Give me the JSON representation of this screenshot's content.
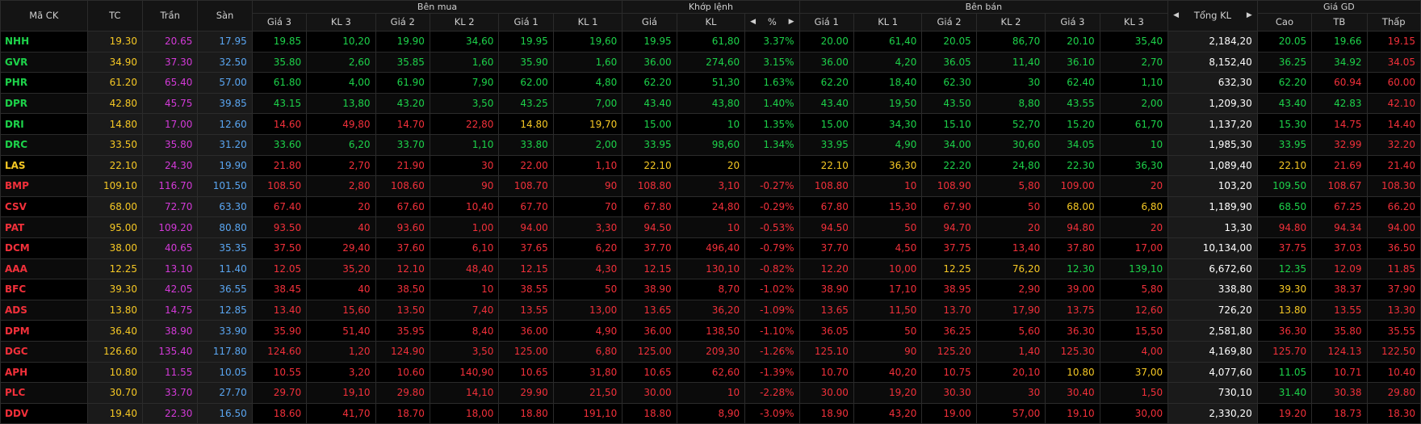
{
  "headers": {
    "symbol": "Mã CK",
    "ref": "TC",
    "ceil": "Trần",
    "floor": "Sàn",
    "buy_group": "Bên mua",
    "match_group": "Khớp lệnh",
    "sell_group": "Bên bán",
    "total": "Tổng KL",
    "price_group": "Giá GD",
    "buy_cols": [
      "Giá 3",
      "KL 3",
      "Giá 2",
      "KL 2",
      "Giá 1",
      "KL 1"
    ],
    "match_cols": [
      "Giá",
      "KL",
      "%"
    ],
    "sell_cols": [
      "Giá 1",
      "KL 1",
      "Giá 2",
      "KL 2",
      "Giá 3",
      "KL 3"
    ],
    "price_cols": [
      "Cao",
      "TB",
      "Thấp"
    ]
  },
  "colors": {
    "up": "#1dd24a",
    "down": "#f2303a",
    "ref": "#f6c824",
    "ceil": "#d33ad8",
    "floor": "#5aa6f2"
  },
  "rows": [
    {
      "sym": "NHH",
      "tc": "19.30",
      "ceil": "20.65",
      "floor": "17.95",
      "b3": [
        "19.85",
        "10,20",
        "up"
      ],
      "b2": [
        "19.90",
        "34,60",
        "up"
      ],
      "b1": [
        "19.95",
        "19,60",
        "up"
      ],
      "m": [
        "19.95",
        "61,80",
        "3.37%",
        "up"
      ],
      "s1": [
        "20.00",
        "61,40",
        "up"
      ],
      "s2": [
        "20.05",
        "86,70",
        "up"
      ],
      "s3": [
        "20.10",
        "35,40",
        "up"
      ],
      "tot": "2,184,20",
      "hi": [
        "20.05",
        "up"
      ],
      "avg": [
        "19.66",
        "up"
      ],
      "lo": [
        "19.15",
        "dn"
      ],
      "c": "up"
    },
    {
      "sym": "GVR",
      "tc": "34.90",
      "ceil": "37.30",
      "floor": "32.50",
      "b3": [
        "35.80",
        "2,60",
        "up"
      ],
      "b2": [
        "35.85",
        "1,60",
        "up"
      ],
      "b1": [
        "35.90",
        "1,60",
        "up"
      ],
      "m": [
        "36.00",
        "274,60",
        "3.15%",
        "up"
      ],
      "s1": [
        "36.00",
        "4,20",
        "up"
      ],
      "s2": [
        "36.05",
        "11,40",
        "up"
      ],
      "s3": [
        "36.10",
        "2,70",
        "up"
      ],
      "tot": "8,152,40",
      "hi": [
        "36.25",
        "up"
      ],
      "avg": [
        "34.92",
        "up"
      ],
      "lo": [
        "34.05",
        "dn"
      ],
      "c": "up"
    },
    {
      "sym": "PHR",
      "tc": "61.20",
      "ceil": "65.40",
      "floor": "57.00",
      "b3": [
        "61.80",
        "4,00",
        "up"
      ],
      "b2": [
        "61.90",
        "7,90",
        "up"
      ],
      "b1": [
        "62.00",
        "4,80",
        "up"
      ],
      "m": [
        "62.20",
        "51,30",
        "1.63%",
        "up"
      ],
      "s1": [
        "62.20",
        "18,40",
        "up"
      ],
      "s2": [
        "62.30",
        "30",
        "up"
      ],
      "s3": [
        "62.40",
        "1,10",
        "up"
      ],
      "tot": "632,30",
      "hi": [
        "62.20",
        "up"
      ],
      "avg": [
        "60.94",
        "dn"
      ],
      "lo": [
        "60.00",
        "dn"
      ],
      "c": "up"
    },
    {
      "sym": "DPR",
      "tc": "42.80",
      "ceil": "45.75",
      "floor": "39.85",
      "b3": [
        "43.15",
        "13,80",
        "up"
      ],
      "b2": [
        "43.20",
        "3,50",
        "up"
      ],
      "b1": [
        "43.25",
        "7,00",
        "up"
      ],
      "m": [
        "43.40",
        "43,80",
        "1.40%",
        "up"
      ],
      "s1": [
        "43.40",
        "19,50",
        "up"
      ],
      "s2": [
        "43.50",
        "8,80",
        "up"
      ],
      "s3": [
        "43.55",
        "2,00",
        "up"
      ],
      "tot": "1,209,30",
      "hi": [
        "43.40",
        "up"
      ],
      "avg": [
        "42.83",
        "up"
      ],
      "lo": [
        "42.10",
        "dn"
      ],
      "c": "up"
    },
    {
      "sym": "DRI",
      "tc": "14.80",
      "ceil": "17.00",
      "floor": "12.60",
      "b3": [
        "14.60",
        "49,80",
        "dn"
      ],
      "b2": [
        "14.70",
        "22,80",
        "dn"
      ],
      "b1": [
        "14.80",
        "19,70",
        "ref"
      ],
      "m": [
        "15.00",
        "10",
        "1.35%",
        "up"
      ],
      "s1": [
        "15.00",
        "34,30",
        "up"
      ],
      "s2": [
        "15.10",
        "52,70",
        "up"
      ],
      "s3": [
        "15.20",
        "61,70",
        "up"
      ],
      "tot": "1,137,20",
      "hi": [
        "15.30",
        "up"
      ],
      "avg": [
        "14.75",
        "dn"
      ],
      "lo": [
        "14.40",
        "dn"
      ],
      "c": "up"
    },
    {
      "sym": "DRC",
      "tc": "33.50",
      "ceil": "35.80",
      "floor": "31.20",
      "b3": [
        "33.60",
        "6,20",
        "up"
      ],
      "b2": [
        "33.70",
        "1,10",
        "up"
      ],
      "b1": [
        "33.80",
        "2,00",
        "up"
      ],
      "m": [
        "33.95",
        "98,60",
        "1.34%",
        "up"
      ],
      "s1": [
        "33.95",
        "4,90",
        "up"
      ],
      "s2": [
        "34.00",
        "30,60",
        "up"
      ],
      "s3": [
        "34.05",
        "10",
        "up"
      ],
      "tot": "1,985,30",
      "hi": [
        "33.95",
        "up"
      ],
      "avg": [
        "32.99",
        "dn"
      ],
      "lo": [
        "32.20",
        "dn"
      ],
      "c": "up"
    },
    {
      "sym": "LAS",
      "tc": "22.10",
      "ceil": "24.30",
      "floor": "19.90",
      "b3": [
        "21.80",
        "2,70",
        "dn"
      ],
      "b2": [
        "21.90",
        "30",
        "dn"
      ],
      "b1": [
        "22.00",
        "1,10",
        "dn"
      ],
      "m": [
        "22.10",
        "20",
        "",
        "ref"
      ],
      "s1": [
        "22.10",
        "36,30",
        "ref"
      ],
      "s2": [
        "22.20",
        "24,80",
        "up"
      ],
      "s3": [
        "22.30",
        "36,30",
        "up"
      ],
      "tot": "1,089,40",
      "hi": [
        "22.10",
        "ref"
      ],
      "avg": [
        "21.69",
        "dn"
      ],
      "lo": [
        "21.40",
        "dn"
      ],
      "c": "ref"
    },
    {
      "sym": "BMP",
      "tc": "109.10",
      "ceil": "116.70",
      "floor": "101.50",
      "b3": [
        "108.50",
        "2,80",
        "dn"
      ],
      "b2": [
        "108.60",
        "90",
        "dn"
      ],
      "b1": [
        "108.70",
        "90",
        "dn"
      ],
      "m": [
        "108.80",
        "3,10",
        "-0.27%",
        "dn"
      ],
      "s1": [
        "108.80",
        "10",
        "dn"
      ],
      "s2": [
        "108.90",
        "5,80",
        "dn"
      ],
      "s3": [
        "109.00",
        "20",
        "dn"
      ],
      "tot": "103,20",
      "hi": [
        "109.50",
        "up"
      ],
      "avg": [
        "108.67",
        "dn"
      ],
      "lo": [
        "108.30",
        "dn"
      ],
      "c": "dn"
    },
    {
      "sym": "CSV",
      "tc": "68.00",
      "ceil": "72.70",
      "floor": "63.30",
      "b3": [
        "67.40",
        "20",
        "dn"
      ],
      "b2": [
        "67.60",
        "10,40",
        "dn"
      ],
      "b1": [
        "67.70",
        "70",
        "dn"
      ],
      "m": [
        "67.80",
        "24,80",
        "-0.29%",
        "dn"
      ],
      "s1": [
        "67.80",
        "15,30",
        "dn"
      ],
      "s2": [
        "67.90",
        "50",
        "dn"
      ],
      "s3": [
        "68.00",
        "6,80",
        "ref"
      ],
      "tot": "1,189,90",
      "hi": [
        "68.50",
        "up"
      ],
      "avg": [
        "67.25",
        "dn"
      ],
      "lo": [
        "66.20",
        "dn"
      ],
      "c": "dn"
    },
    {
      "sym": "PAT",
      "tc": "95.00",
      "ceil": "109.20",
      "floor": "80.80",
      "b3": [
        "93.50",
        "40",
        "dn"
      ],
      "b2": [
        "93.60",
        "1,00",
        "dn"
      ],
      "b1": [
        "94.00",
        "3,30",
        "dn"
      ],
      "m": [
        "94.50",
        "10",
        "-0.53%",
        "dn"
      ],
      "s1": [
        "94.50",
        "50",
        "dn"
      ],
      "s2": [
        "94.70",
        "20",
        "dn"
      ],
      "s3": [
        "94.80",
        "20",
        "dn"
      ],
      "tot": "13,30",
      "hi": [
        "94.80",
        "dn"
      ],
      "avg": [
        "94.34",
        "dn"
      ],
      "lo": [
        "94.00",
        "dn"
      ],
      "c": "dn"
    },
    {
      "sym": "DCM",
      "tc": "38.00",
      "ceil": "40.65",
      "floor": "35.35",
      "b3": [
        "37.50",
        "29,40",
        "dn"
      ],
      "b2": [
        "37.60",
        "6,10",
        "dn"
      ],
      "b1": [
        "37.65",
        "6,20",
        "dn"
      ],
      "m": [
        "37.70",
        "496,40",
        "-0.79%",
        "dn"
      ],
      "s1": [
        "37.70",
        "4,50",
        "dn"
      ],
      "s2": [
        "37.75",
        "13,40",
        "dn"
      ],
      "s3": [
        "37.80",
        "17,00",
        "dn"
      ],
      "tot": "10,134,00",
      "hi": [
        "37.75",
        "dn"
      ],
      "avg": [
        "37.03",
        "dn"
      ],
      "lo": [
        "36.50",
        "dn"
      ],
      "c": "dn"
    },
    {
      "sym": "AAA",
      "tc": "12.25",
      "ceil": "13.10",
      "floor": "11.40",
      "b3": [
        "12.05",
        "35,20",
        "dn"
      ],
      "b2": [
        "12.10",
        "48,40",
        "dn"
      ],
      "b1": [
        "12.15",
        "4,30",
        "dn"
      ],
      "m": [
        "12.15",
        "130,10",
        "-0.82%",
        "dn"
      ],
      "s1": [
        "12.20",
        "10,00",
        "dn"
      ],
      "s2": [
        "12.25",
        "76,20",
        "ref"
      ],
      "s3": [
        "12.30",
        "139,10",
        "up"
      ],
      "tot": "6,672,60",
      "hi": [
        "12.35",
        "up"
      ],
      "avg": [
        "12.09",
        "dn"
      ],
      "lo": [
        "11.85",
        "dn"
      ],
      "c": "dn"
    },
    {
      "sym": "BFC",
      "tc": "39.30",
      "ceil": "42.05",
      "floor": "36.55",
      "b3": [
        "38.45",
        "40",
        "dn"
      ],
      "b2": [
        "38.50",
        "10",
        "dn"
      ],
      "b1": [
        "38.55",
        "50",
        "dn"
      ],
      "m": [
        "38.90",
        "8,70",
        "-1.02%",
        "dn"
      ],
      "s1": [
        "38.90",
        "17,10",
        "dn"
      ],
      "s2": [
        "38.95",
        "2,90",
        "dn"
      ],
      "s3": [
        "39.00",
        "5,80",
        "dn"
      ],
      "tot": "338,80",
      "hi": [
        "39.30",
        "ref"
      ],
      "avg": [
        "38.37",
        "dn"
      ],
      "lo": [
        "37.90",
        "dn"
      ],
      "c": "dn"
    },
    {
      "sym": "ADS",
      "tc": "13.80",
      "ceil": "14.75",
      "floor": "12.85",
      "b3": [
        "13.40",
        "15,60",
        "dn"
      ],
      "b2": [
        "13.50",
        "7,40",
        "dn"
      ],
      "b1": [
        "13.55",
        "13,00",
        "dn"
      ],
      "m": [
        "13.65",
        "36,20",
        "-1.09%",
        "dn"
      ],
      "s1": [
        "13.65",
        "11,50",
        "dn"
      ],
      "s2": [
        "13.70",
        "17,90",
        "dn"
      ],
      "s3": [
        "13.75",
        "12,60",
        "dn"
      ],
      "tot": "726,20",
      "hi": [
        "13.80",
        "ref"
      ],
      "avg": [
        "13.55",
        "dn"
      ],
      "lo": [
        "13.30",
        "dn"
      ],
      "c": "dn"
    },
    {
      "sym": "DPM",
      "tc": "36.40",
      "ceil": "38.90",
      "floor": "33.90",
      "b3": [
        "35.90",
        "51,40",
        "dn"
      ],
      "b2": [
        "35.95",
        "8,40",
        "dn"
      ],
      "b1": [
        "36.00",
        "4,90",
        "dn"
      ],
      "m": [
        "36.00",
        "138,50",
        "-1.10%",
        "dn"
      ],
      "s1": [
        "36.05",
        "50",
        "dn"
      ],
      "s2": [
        "36.25",
        "5,60",
        "dn"
      ],
      "s3": [
        "36.30",
        "15,50",
        "dn"
      ],
      "tot": "2,581,80",
      "hi": [
        "36.30",
        "dn"
      ],
      "avg": [
        "35.80",
        "dn"
      ],
      "lo": [
        "35.55",
        "dn"
      ],
      "c": "dn"
    },
    {
      "sym": "DGC",
      "tc": "126.60",
      "ceil": "135.40",
      "floor": "117.80",
      "b3": [
        "124.60",
        "1,20",
        "dn"
      ],
      "b2": [
        "124.90",
        "3,50",
        "dn"
      ],
      "b1": [
        "125.00",
        "6,80",
        "dn"
      ],
      "m": [
        "125.00",
        "209,30",
        "-1.26%",
        "dn"
      ],
      "s1": [
        "125.10",
        "90",
        "dn"
      ],
      "s2": [
        "125.20",
        "1,40",
        "dn"
      ],
      "s3": [
        "125.30",
        "4,00",
        "dn"
      ],
      "tot": "4,169,80",
      "hi": [
        "125.70",
        "dn"
      ],
      "avg": [
        "124.13",
        "dn"
      ],
      "lo": [
        "122.50",
        "dn"
      ],
      "c": "dn"
    },
    {
      "sym": "APH",
      "tc": "10.80",
      "ceil": "11.55",
      "floor": "10.05",
      "b3": [
        "10.55",
        "3,20",
        "dn"
      ],
      "b2": [
        "10.60",
        "140,90",
        "dn"
      ],
      "b1": [
        "10.65",
        "31,80",
        "dn"
      ],
      "m": [
        "10.65",
        "62,60",
        "-1.39%",
        "dn"
      ],
      "s1": [
        "10.70",
        "40,20",
        "dn"
      ],
      "s2": [
        "10.75",
        "20,10",
        "dn"
      ],
      "s3": [
        "10.80",
        "37,00",
        "ref"
      ],
      "tot": "4,077,60",
      "hi": [
        "11.05",
        "up"
      ],
      "avg": [
        "10.71",
        "dn"
      ],
      "lo": [
        "10.40",
        "dn"
      ],
      "c": "dn"
    },
    {
      "sym": "PLC",
      "tc": "30.70",
      "ceil": "33.70",
      "floor": "27.70",
      "b3": [
        "29.70",
        "19,10",
        "dn"
      ],
      "b2": [
        "29.80",
        "14,10",
        "dn"
      ],
      "b1": [
        "29.90",
        "21,50",
        "dn"
      ],
      "m": [
        "30.00",
        "10",
        "-2.28%",
        "dn"
      ],
      "s1": [
        "30.00",
        "19,20",
        "dn"
      ],
      "s2": [
        "30.30",
        "30",
        "dn"
      ],
      "s3": [
        "30.40",
        "1,50",
        "dn"
      ],
      "tot": "730,10",
      "hi": [
        "31.40",
        "up"
      ],
      "avg": [
        "30.38",
        "dn"
      ],
      "lo": [
        "29.80",
        "dn"
      ],
      "c": "dn"
    },
    {
      "sym": "DDV",
      "tc": "19.40",
      "ceil": "22.30",
      "floor": "16.50",
      "b3": [
        "18.60",
        "41,70",
        "dn"
      ],
      "b2": [
        "18.70",
        "18,00",
        "dn"
      ],
      "b1": [
        "18.80",
        "191,10",
        "dn"
      ],
      "m": [
        "18.80",
        "8,90",
        "-3.09%",
        "dn"
      ],
      "s1": [
        "18.90",
        "43,20",
        "dn"
      ],
      "s2": [
        "19.00",
        "57,00",
        "dn"
      ],
      "s3": [
        "19.10",
        "30,00",
        "dn"
      ],
      "tot": "2,330,20",
      "hi": [
        "19.20",
        "dn"
      ],
      "avg": [
        "18.73",
        "dn"
      ],
      "lo": [
        "18.30",
        "dn"
      ],
      "c": "dn"
    }
  ]
}
